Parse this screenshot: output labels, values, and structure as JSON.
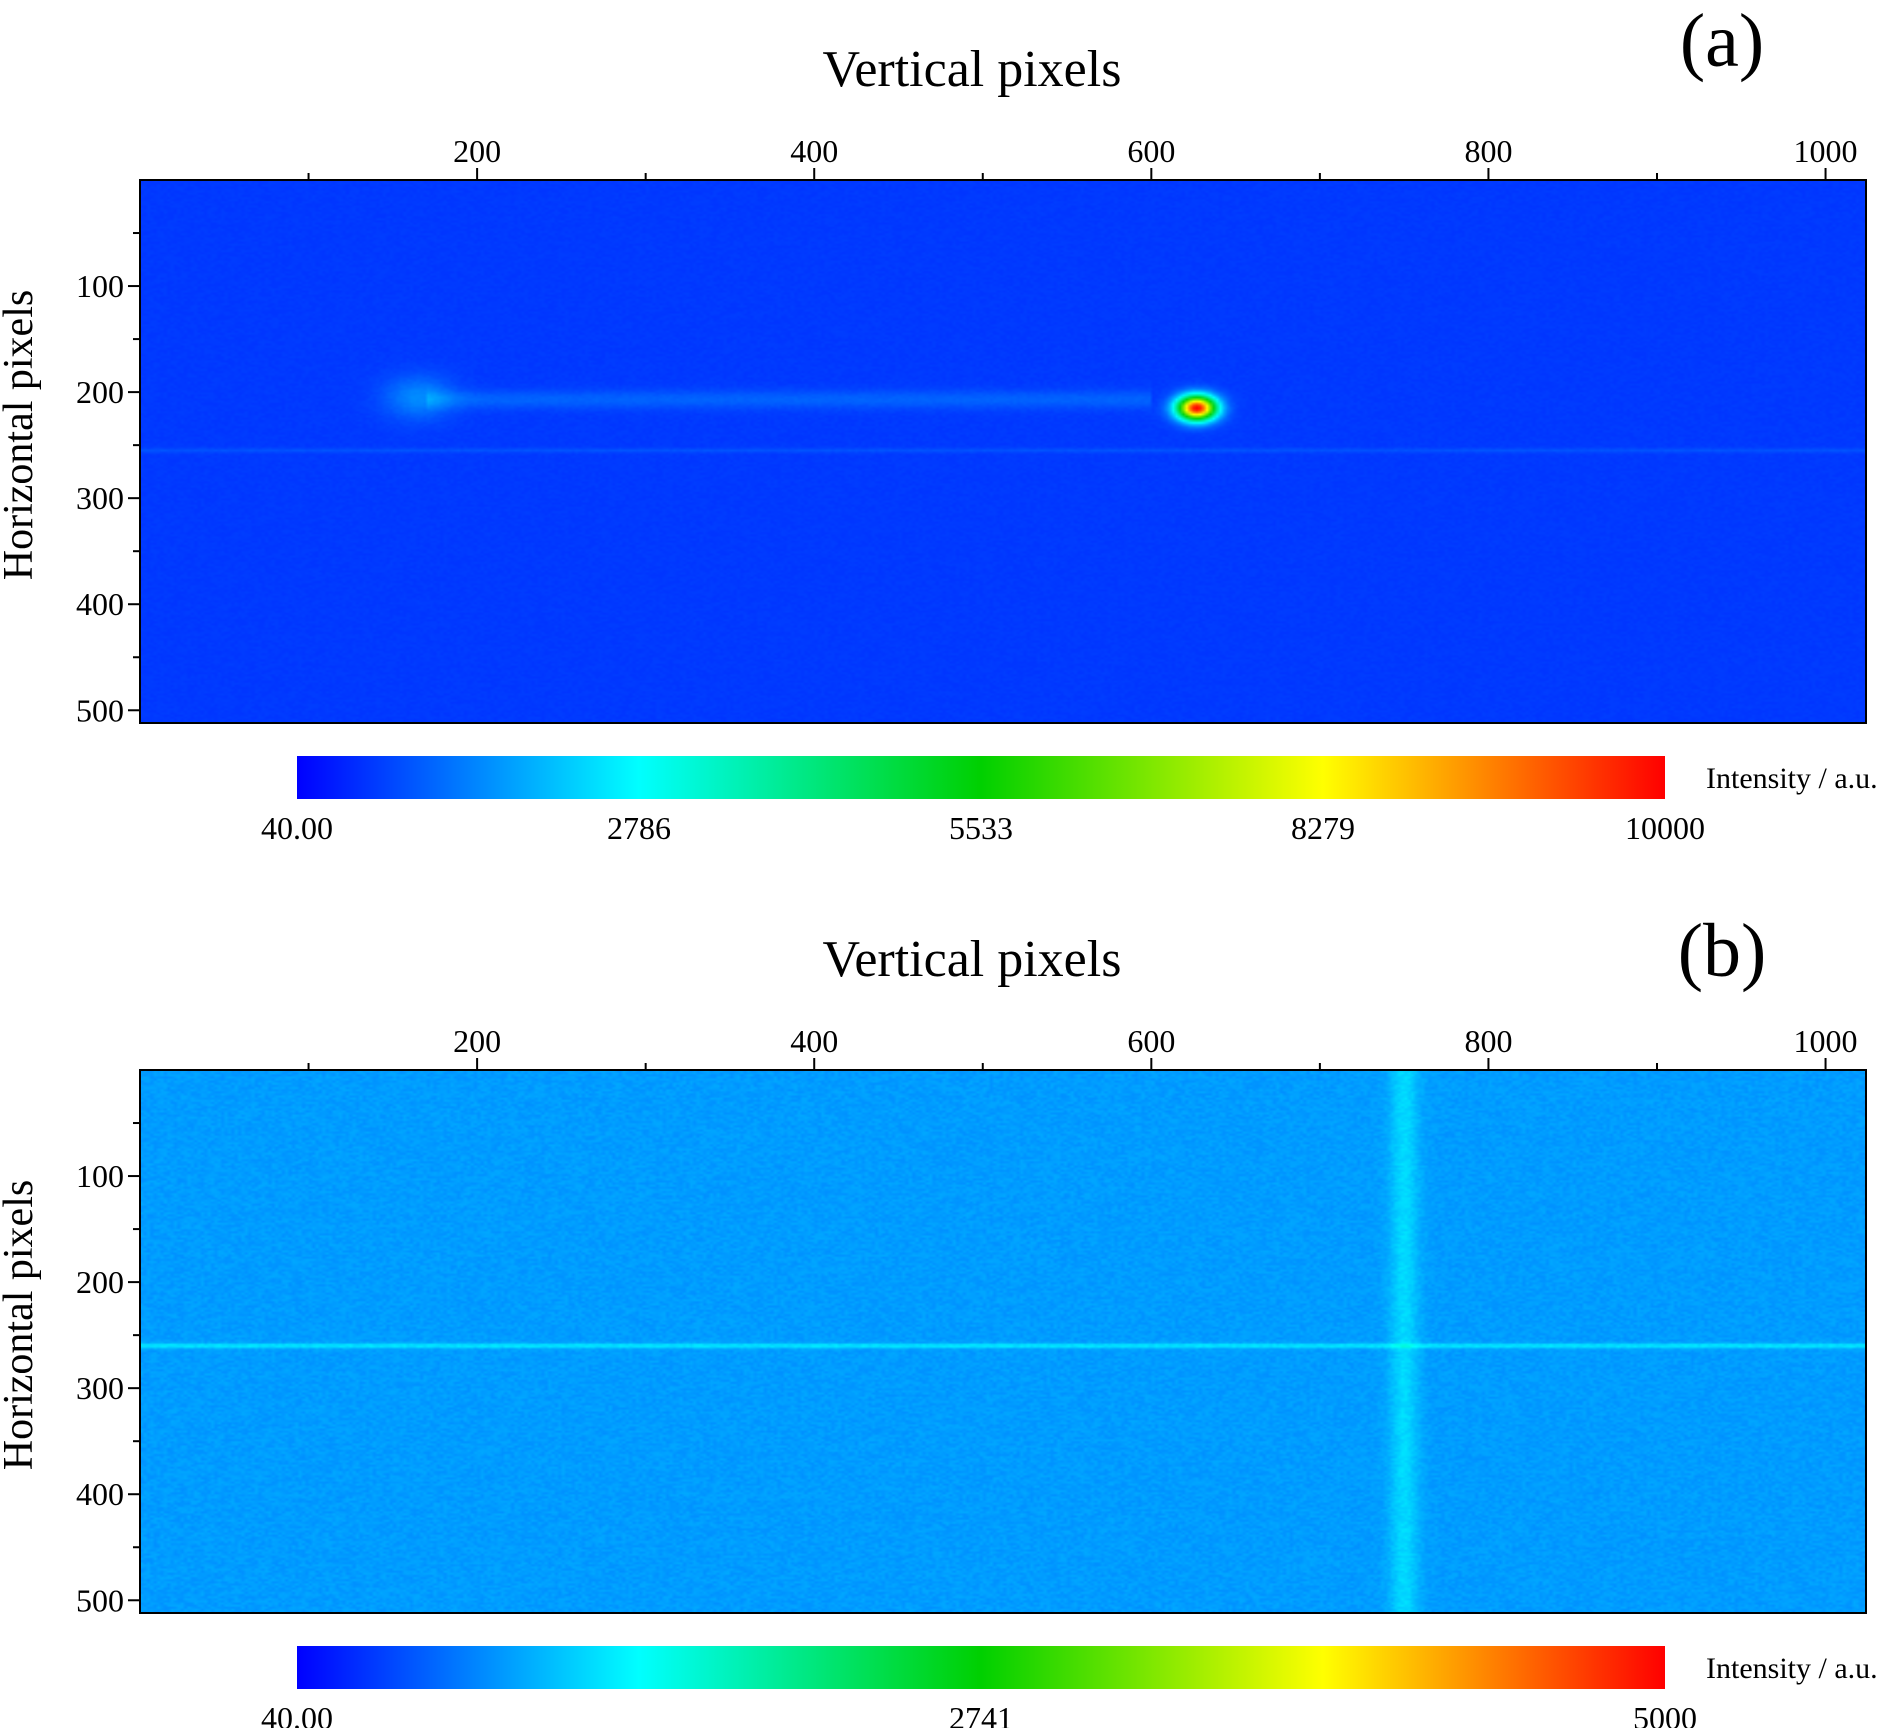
{
  "figure": {
    "panels": [
      {
        "panel_label": "(a)",
        "title": "Vertical pixels",
        "ylabel": "Horizontal pixels",
        "colorbar_label": "Intensity / a.u."
      },
      {
        "panel_label": "(b)",
        "title": "Vertical pixels",
        "ylabel": "Horizontal pixels",
        "colorbar_label": "Intensity / a.u."
      }
    ]
  },
  "chart_data": [
    {
      "type": "heatmap",
      "panel": "(a)",
      "title": "Vertical pixels",
      "xlabel": "Vertical pixels",
      "ylabel": "Horizontal pixels",
      "x_axis_position": "top",
      "xlim": [
        0,
        1024
      ],
      "ylim": [
        512,
        0
      ],
      "x_ticks": [
        200,
        400,
        600,
        800,
        1000
      ],
      "x_minor_ticks": [
        100,
        300,
        500,
        700,
        900
      ],
      "y_ticks": [
        100,
        200,
        300,
        400,
        500
      ],
      "y_minor_ticks": [
        50,
        150,
        250,
        350,
        450
      ],
      "background_intensity": 600,
      "features": [
        {
          "kind": "spot",
          "x": 627,
          "y": 215,
          "peak_intensity": 10000,
          "sigma": 8
        },
        {
          "kind": "spot",
          "x": 165,
          "y": 205,
          "peak_intensity": 1400,
          "sigma": 14
        },
        {
          "kind": "streak",
          "x_start": 170,
          "x_end": 600,
          "y": 207,
          "intensity": 400
        },
        {
          "kind": "horizontal-line",
          "y": 255,
          "intensity": 250
        }
      ],
      "colorbar": {
        "label": "Intensity / a.u.",
        "min": 40,
        "max": 10000,
        "tick_labels": [
          "40.00",
          "2786",
          "5533",
          "8279",
          "10000"
        ],
        "colors": [
          "#0000ff",
          "#00ffff",
          "#00d000",
          "#ffff00",
          "#ff0000"
        ]
      }
    },
    {
      "type": "heatmap",
      "panel": "(b)",
      "title": "Vertical pixels",
      "xlabel": "Vertical pixels",
      "ylabel": "Horizontal pixels",
      "x_axis_position": "top",
      "xlim": [
        0,
        1024
      ],
      "ylim": [
        512,
        0
      ],
      "x_ticks": [
        200,
        400,
        600,
        800,
        1000
      ],
      "x_minor_ticks": [
        100,
        300,
        500,
        700,
        900
      ],
      "y_ticks": [
        100,
        200,
        300,
        400,
        500
      ],
      "y_minor_ticks": [
        50,
        150,
        250,
        350,
        450
      ],
      "background_intensity": 800,
      "features": [
        {
          "kind": "horizontal-line",
          "y": 260,
          "intensity": 400
        },
        {
          "kind": "vertical-line",
          "x": 750,
          "intensity": 300
        }
      ],
      "colorbar": {
        "label": "Intensity / a.u.",
        "min": 40,
        "max": 5000,
        "tick_labels": [
          "40.00",
          "2741",
          "5000"
        ],
        "colors": [
          "#0000ff",
          "#00ffff",
          "#00d000",
          "#ffff00",
          "#ff0000"
        ]
      }
    }
  ]
}
